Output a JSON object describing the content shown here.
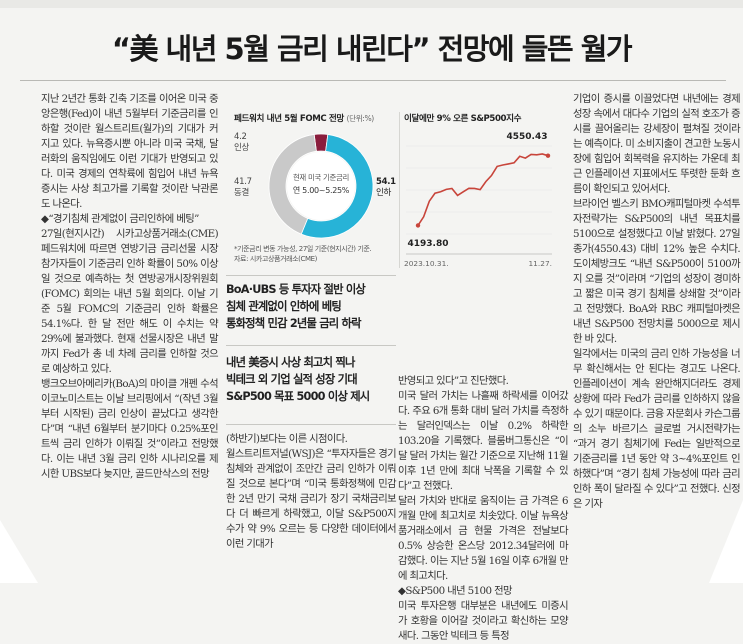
{
  "headline": "“美 내년 5월 금리 내린다” 전망에 들뜬 월가",
  "col1": {
    "p1": "지난 2년간 통화 긴축 기조를 이어온 미국 중앙은행(Fed)이 내년 5월부터 기준금리를 인하할 것이란 월스트리트(월가)의 기대가 커지고 있다. 뉴욕증시뿐 아니라 미국 국채, 달러화의 움직임에도 이런 기대가 반영되고 있다. 미국 경제의 연착륙에 힘입어 내년 뉴욕증시는 사상 최고가를 기록할 것이란 낙관론도 나온다.",
    "p2_head": "◆“경기침체 관계없이 금리인하에 베팅”",
    "p2": "27일(현지시간) 시카고상품거래소(CME) 페드워치에 따르면 연방기금 금리선물 시장 참가자들이 기준금리 인하 확률이 50% 이상일 것으로 예측하는 첫 연방공개시장위원회(FOMC) 회의는 내년 5월 회의다. 이날 기준 5월 FOMC의 기준금리 인하 확률은 54.1%다. 한 달 전만 해도 이 수치는 약 29%에 불과했다. 현재 선물시장은 내년 말까지 Fed가 총 네 차례 금리를 인하할 것으로 예상하고 있다.",
    "p3": "뱅크오브아메리카(BoA)의 마이클 개펜 수석이코노미스트는 이날 브리핑에서 “(작년 3월부터 시작된) 금리 인상이 끝났다고 생각한다”며 “내년 6월부터 분기마다 0.25%포인트씩 금리 인하가 이뤄질 것”이라고 전망했다. 이는 내년 3월 금리 인하 시나리오를 제시한 UBS보다 늦지만, 골드만삭스의 전망"
  },
  "chart_data": [
    {
      "type": "pie",
      "title": "페드워치 내년 5월 FOMC 전망",
      "unit": "(단위:%)",
      "center_label_1": "현재 미국 기준금리",
      "center_label_2": "연 5.00~5.25%",
      "slices": [
        {
          "label": "인상",
          "value": 4.2,
          "value_text": "4.2",
          "color": "#8a1d3c"
        },
        {
          "label": "동결",
          "value": 41.7,
          "value_text": "41.7",
          "color": "#c9c9c9"
        },
        {
          "label": "인하",
          "value": 54.1,
          "value_text": "54.1",
          "color": "#27b3d7"
        }
      ],
      "notes": [
        "*기준금리 변동 가능성, 27일 기준(현지시간) 기준.",
        "자료: 시카고상품거래소(CME)"
      ]
    },
    {
      "type": "line",
      "title": "이달에만 9% 오른 S&P500지수",
      "x_labels": [
        "2023.10.31.",
        "11.27."
      ],
      "start": {
        "value": 4193.8,
        "label": "4193.80"
      },
      "end": {
        "value": 4550.43,
        "label": "4550.43"
      },
      "ylim": [
        4150,
        4600
      ],
      "values": [
        4193.8,
        4237.86,
        4317.78,
        4358.34,
        4365.98,
        4378.38,
        4382.78,
        4347.35,
        4365.69,
        4383.73,
        4382.97,
        4376.91,
        4417.92,
        4448.9,
        4495.7,
        4502.88,
        4508.24,
        4514.02,
        4547.38,
        4538.19,
        4556.62,
        4554.89,
        4559.34,
        4550.43
      ],
      "color": "#c8453b"
    }
  ],
  "subheads": {
    "line1": "BoA·UBS 등 투자자 절반 이상",
    "line2": "침체 관계없이 인하에 베팅",
    "line3": "통화정책 민감 2년물 금리 하락",
    "line4": "내년 美증시 사상 최고치 찍나",
    "line5": "빅테크 외 기업 실적 성장 기대",
    "line6": "S&P500 목표 5000 이상 제시"
  },
  "col2": {
    "p1": "(하반기)보다는 이른 시점이다.",
    "p2": "월스트리트저널(WSJ)은 “투자자들은 경기침체와 관계없이 조만간 금리 인하가 이뤄질 것으로 본다”며 “미국 통화정책에 민감한 2년 만기 국채 금리가 장기 국채금리보다 더 빠르게 하락했고, 이달 S&P500지수가 약 9% 오르는 등 다양한 데이터에서 이런 기대가"
  },
  "col3": {
    "p1": "반영되고 있다”고 진단했다.",
    "p2": "미국 달러 가치는 나흘째 하락세를 이어갔다. 주요 6개 통화 대비 달러 가치를 측정하는 달러인덱스는 이날 0.2% 하락한 103.20을 기록했다. 블룸버그통신은 “이달 달러 가치는 월간 기준으로 지난해 11월 이후 1년 만에 최대 낙폭을 기록할 수 있다”고 전했다.",
    "p3": "달러 가치와 반대로 움직이는 금 가격은 6개월 만에 최고치로 치솟았다. 이날 뉴욕상품거래소에서 금 현물 가격은 전날보다 0.5% 상승한 온스당 2012.34달러에 마감했다. 이는 지난 5월 16일 이후 6개월 만에 최고치다.",
    "p4_head": "◆S&P500 내년 5100 전망",
    "p4": "미국 투자은행 대부분은 내년에도 미증시가 호황을 이어갈 것이라고 확신하는 모양새다. 그동안 빅테크 등 특정"
  },
  "col4": {
    "p1": "기업이 증시를 이끌었다면 내년에는 경제 성장 속에서 대다수 기업의 실적 호조가 증시를 끌어올리는 강세장이 펼쳐질 것이라는 예측이다. 미 소비지출이 견고한 노동시장에 힘입어 회복력을 유지하는 가운데 최근 인플레이션 지표에서도 뚜렷한 둔화 흐름이 확인되고 있어서다.",
    "p2": "브라이언 벨스키 BMO캐피털마켓 수석투자전략가는 S&P500의 내년 목표치를 5100으로 설정했다고 이날 밝혔다. 27일 종가(4550.43) 대비 12% 높은 수치다. 도이체방크도 “내년 S&P500이 5100까지 오를 것”이라며 “기업의 성장이 경미하고 짧은 미국 경기 침체를 상쇄할 것”이라고 전망했다. BoA와 RBC 캐피털마켓은 내년 S&P500 전망치를 5000으로 제시한 바 있다.",
    "p3": "일각에서는 미국의 금리 인하 가능성을 너무 확신해서는 안 된다는 경고도 나온다. 인플레이션이 계속 완만해지더라도 경제 상황에 따라 Fed가 금리를 인하하지 않을 수 있기 때문이다. 금융 자문회사 카슨그룹의 소누 바르기스 글로벌 거시전략가는 “과거 경기 침체기에 Fed는 일반적으로 기준금리를 1년 동안 약 3~4%포인트 인하했다”며 “경기 침체 가능성에 따라 금리 인하 폭이 달라질 수 있다”고 전했다. 신정은 기자"
  }
}
